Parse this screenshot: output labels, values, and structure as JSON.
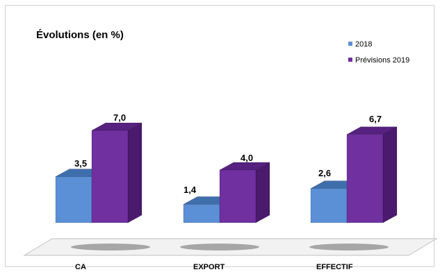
{
  "chart_data": {
    "type": "bar",
    "title": "Évolutions (en %)",
    "categories": [
      "CA",
      "EXPORT",
      "EFFECTIF"
    ],
    "series": [
      {
        "name": "2018",
        "values": [
          3.5,
          1.4,
          2.6
        ],
        "labels": [
          "3,5",
          "1,4",
          "2,6"
        ]
      },
      {
        "name": "Prévisions 2019",
        "values": [
          7.0,
          4.0,
          6.7
        ],
        "labels": [
          "7,0",
          "4,0",
          "6,7"
        ]
      }
    ],
    "ylim": [
      0,
      7.0
    ],
    "grid": false,
    "legend": "top-right",
    "style": "3d-clustered-column",
    "colors": {
      "series0_front": "#5b8fd6",
      "series0_top": "#3f6ead",
      "series0_side": "#35609a",
      "series1_front": "#7030a0",
      "series1_top": "#56217f",
      "series1_side": "#4a1a6e"
    }
  }
}
